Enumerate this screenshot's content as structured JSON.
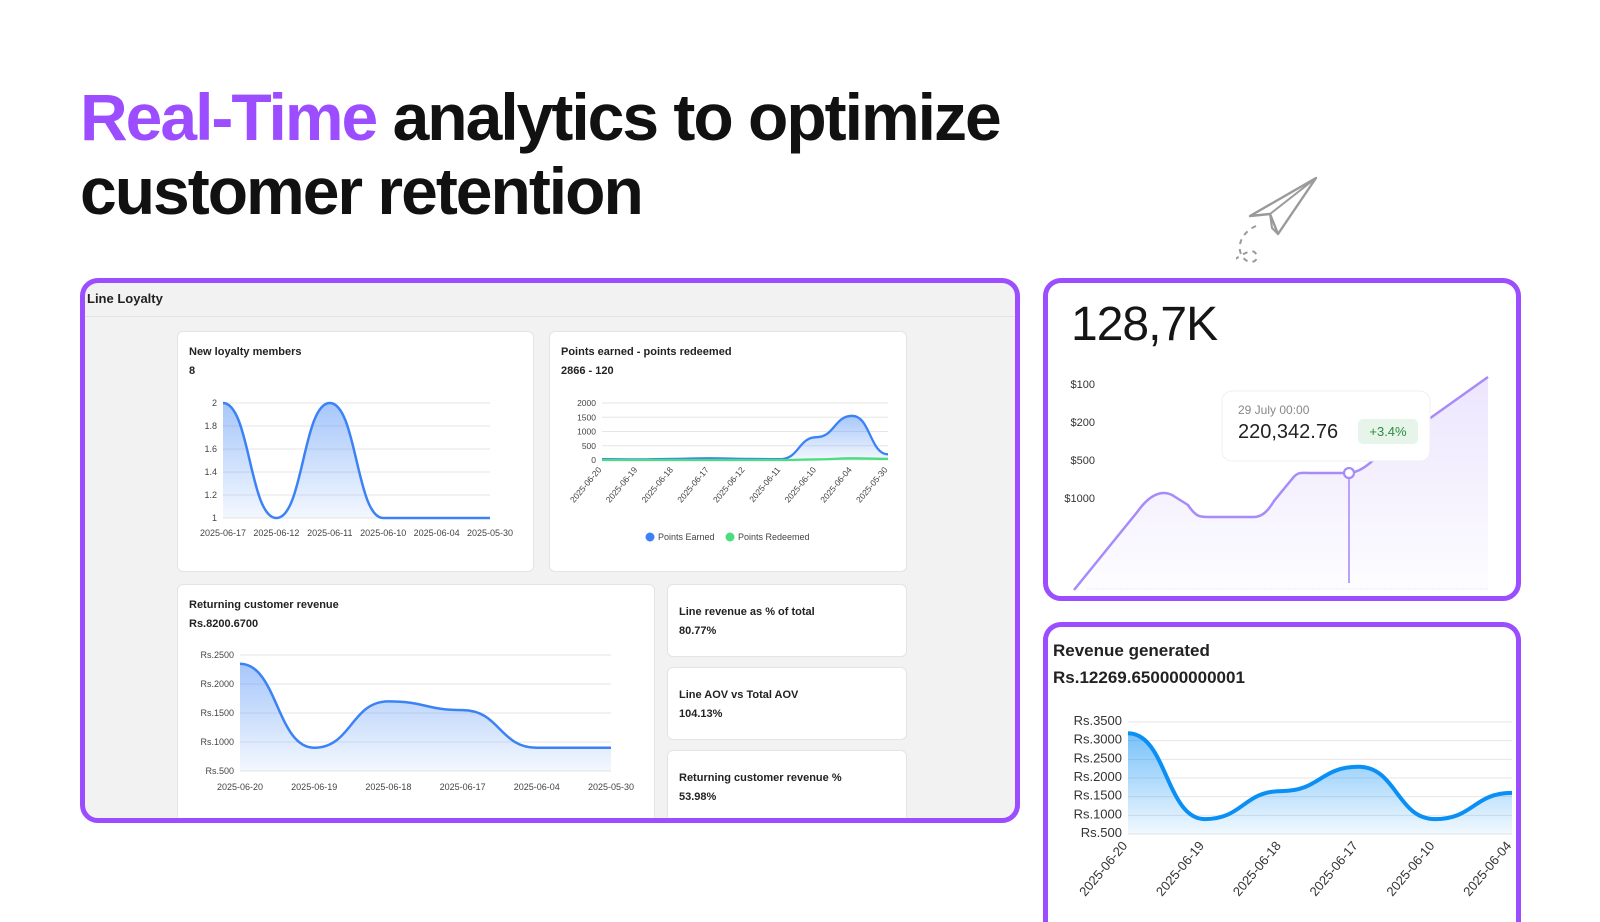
{
  "headline": {
    "accent": "Real-Time",
    "rest_line1": " analytics to optimize",
    "line2": "customer retention"
  },
  "app": {
    "title": "Line Loyalty"
  },
  "cards": {
    "new_members": {
      "title": "New loyalty members",
      "value": "8"
    },
    "points": {
      "title": "Points earned - points redeemed",
      "value": "2866 - 120",
      "legend": [
        "Points Earned",
        "Points Redeemed"
      ]
    },
    "returning_revenue": {
      "title": "Returning customer revenue",
      "value": "Rs.8200.6700"
    },
    "line_revenue_pct": {
      "title": "Line revenue as % of total",
      "value": "80.77%"
    },
    "line_aov": {
      "title": "Line AOV vs Total AOV",
      "value": "104.13%"
    },
    "returning_revenue_pct": {
      "title": "Returning customer revenue %",
      "value": "53.98%"
    }
  },
  "kpi": {
    "big_value": "128,7K",
    "tooltip_date": "29 July 00:00",
    "tooltip_value": "220,342.76",
    "tooltip_change": "+3.4%"
  },
  "revenue_generated": {
    "title": "Revenue generated",
    "value": "Rs.12269.650000000001"
  },
  "colors": {
    "accent": "#9b4dff",
    "blue": "#3b82f6",
    "green": "#4ade80",
    "change_bg": "#e6f4ea",
    "change_fg": "#2e8b3e"
  },
  "chart_data": [
    {
      "id": "new_members",
      "type": "area",
      "title": "New loyalty members",
      "categories": [
        "2025-06-17",
        "2025-06-12",
        "2025-06-11",
        "2025-06-10",
        "2025-06-04",
        "2025-05-30"
      ],
      "y_ticks": [
        "1",
        "1.2",
        "1.4",
        "1.6",
        "1.8",
        "2"
      ],
      "ylim": [
        1,
        2
      ],
      "series": [
        {
          "values": [
            2,
            1,
            2,
            1,
            1,
            1
          ]
        }
      ]
    },
    {
      "id": "points",
      "type": "area",
      "title": "Points earned - points redeemed",
      "categories": [
        "2025-06-20",
        "2025-06-19",
        "2025-06-18",
        "2025-06-17",
        "2025-06-12",
        "2025-06-11",
        "2025-06-10",
        "2025-06-04",
        "2025-05-30"
      ],
      "y_ticks": [
        "0",
        "500",
        "1000",
        "1500",
        "2000"
      ],
      "ylim": [
        0,
        2000
      ],
      "legend": "bottom",
      "series": [
        {
          "name": "Points Earned",
          "values": [
            30,
            20,
            40,
            60,
            40,
            30,
            800,
            1550,
            200
          ]
        },
        {
          "name": "Points Redeemed",
          "values": [
            0,
            0,
            0,
            0,
            0,
            0,
            20,
            60,
            40
          ]
        }
      ]
    },
    {
      "id": "returning_revenue",
      "type": "area",
      "title": "Returning customer revenue",
      "categories": [
        "2025-06-20",
        "2025-06-19",
        "2025-06-18",
        "2025-06-17",
        "2025-06-04",
        "2025-05-30"
      ],
      "y_ticks": [
        "Rs.500",
        "Rs.1000",
        "Rs.1500",
        "Rs.2000",
        "Rs.2500"
      ],
      "ylim": [
        500,
        2500
      ],
      "series": [
        {
          "values": [
            2350,
            900,
            1700,
            1550,
            900,
            900
          ]
        }
      ]
    },
    {
      "id": "kpi_trend",
      "type": "area",
      "y_ticks": [
        "$100",
        "$200",
        "$500",
        "$1000"
      ],
      "series": [
        {
          "values": [
            0,
            28,
            17,
            17,
            30,
            30,
            56
          ],
          "highlight_index": 4
        }
      ]
    },
    {
      "id": "revenue_generated",
      "type": "area",
      "title": "Revenue generated",
      "categories": [
        "2025-06-20",
        "2025-06-19",
        "2025-06-18",
        "2025-06-17",
        "2025-06-10",
        "2025-06-04"
      ],
      "y_ticks": [
        "Rs.500",
        "Rs.1000",
        "Rs.1500",
        "Rs.2000",
        "Rs.2500",
        "Rs.3000",
        "Rs.3500"
      ],
      "ylim": [
        500,
        3500
      ],
      "series": [
        {
          "values": [
            3200,
            900,
            1650,
            2300,
            900,
            1600
          ]
        }
      ]
    }
  ]
}
